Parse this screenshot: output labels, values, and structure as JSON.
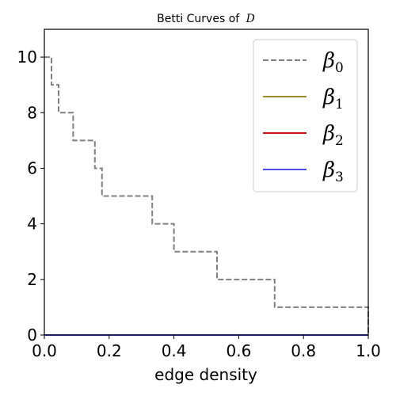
{
  "chart_data": {
    "type": "line",
    "title": "Betti Curves of",
    "title_math": "D",
    "xlabel": "edge density",
    "ylabel": "",
    "xlim": [
      0.0,
      1.0
    ],
    "ylim": [
      0,
      11
    ],
    "x_ticks": [
      0.0,
      0.2,
      0.4,
      0.6,
      0.8,
      1.0
    ],
    "x_tick_labels": [
      "0.0",
      "0.2",
      "0.4",
      "0.6",
      "0.8",
      "1.0"
    ],
    "y_ticks": [
      0,
      2,
      4,
      6,
      8,
      10
    ],
    "y_tick_labels": [
      "0",
      "2",
      "4",
      "6",
      "8",
      "10"
    ],
    "grid": false,
    "legend_position": "top-right",
    "series": [
      {
        "name": "β0",
        "symbol": "β",
        "subscript": "0",
        "color": "#808080",
        "style": "dashed",
        "drawstyle": "steps-post",
        "x": [
          0.0,
          0.022,
          0.044,
          0.089,
          0.156,
          0.178,
          0.333,
          0.4,
          0.533,
          0.711,
          1.0
        ],
        "y": [
          10,
          9,
          8,
          7,
          6,
          5,
          4,
          3,
          2,
          1,
          0
        ]
      },
      {
        "name": "β1",
        "symbol": "β",
        "subscript": "1",
        "color": "#a48a2e",
        "style": "solid",
        "drawstyle": "steps-post",
        "x": [
          0.0,
          1.0
        ],
        "y": [
          0,
          0
        ]
      },
      {
        "name": "β2",
        "symbol": "β",
        "subscript": "2",
        "color": "#c81414",
        "style": "solid",
        "drawstyle": "steps-post",
        "x": [
          0.0,
          1.0
        ],
        "y": [
          0,
          0
        ]
      },
      {
        "name": "β3",
        "symbol": "β",
        "subscript": "3",
        "color": "#4b4bee",
        "style": "solid",
        "drawstyle": "steps-post",
        "x": [
          0.0,
          1.0
        ],
        "y": [
          0,
          0
        ]
      }
    ]
  }
}
